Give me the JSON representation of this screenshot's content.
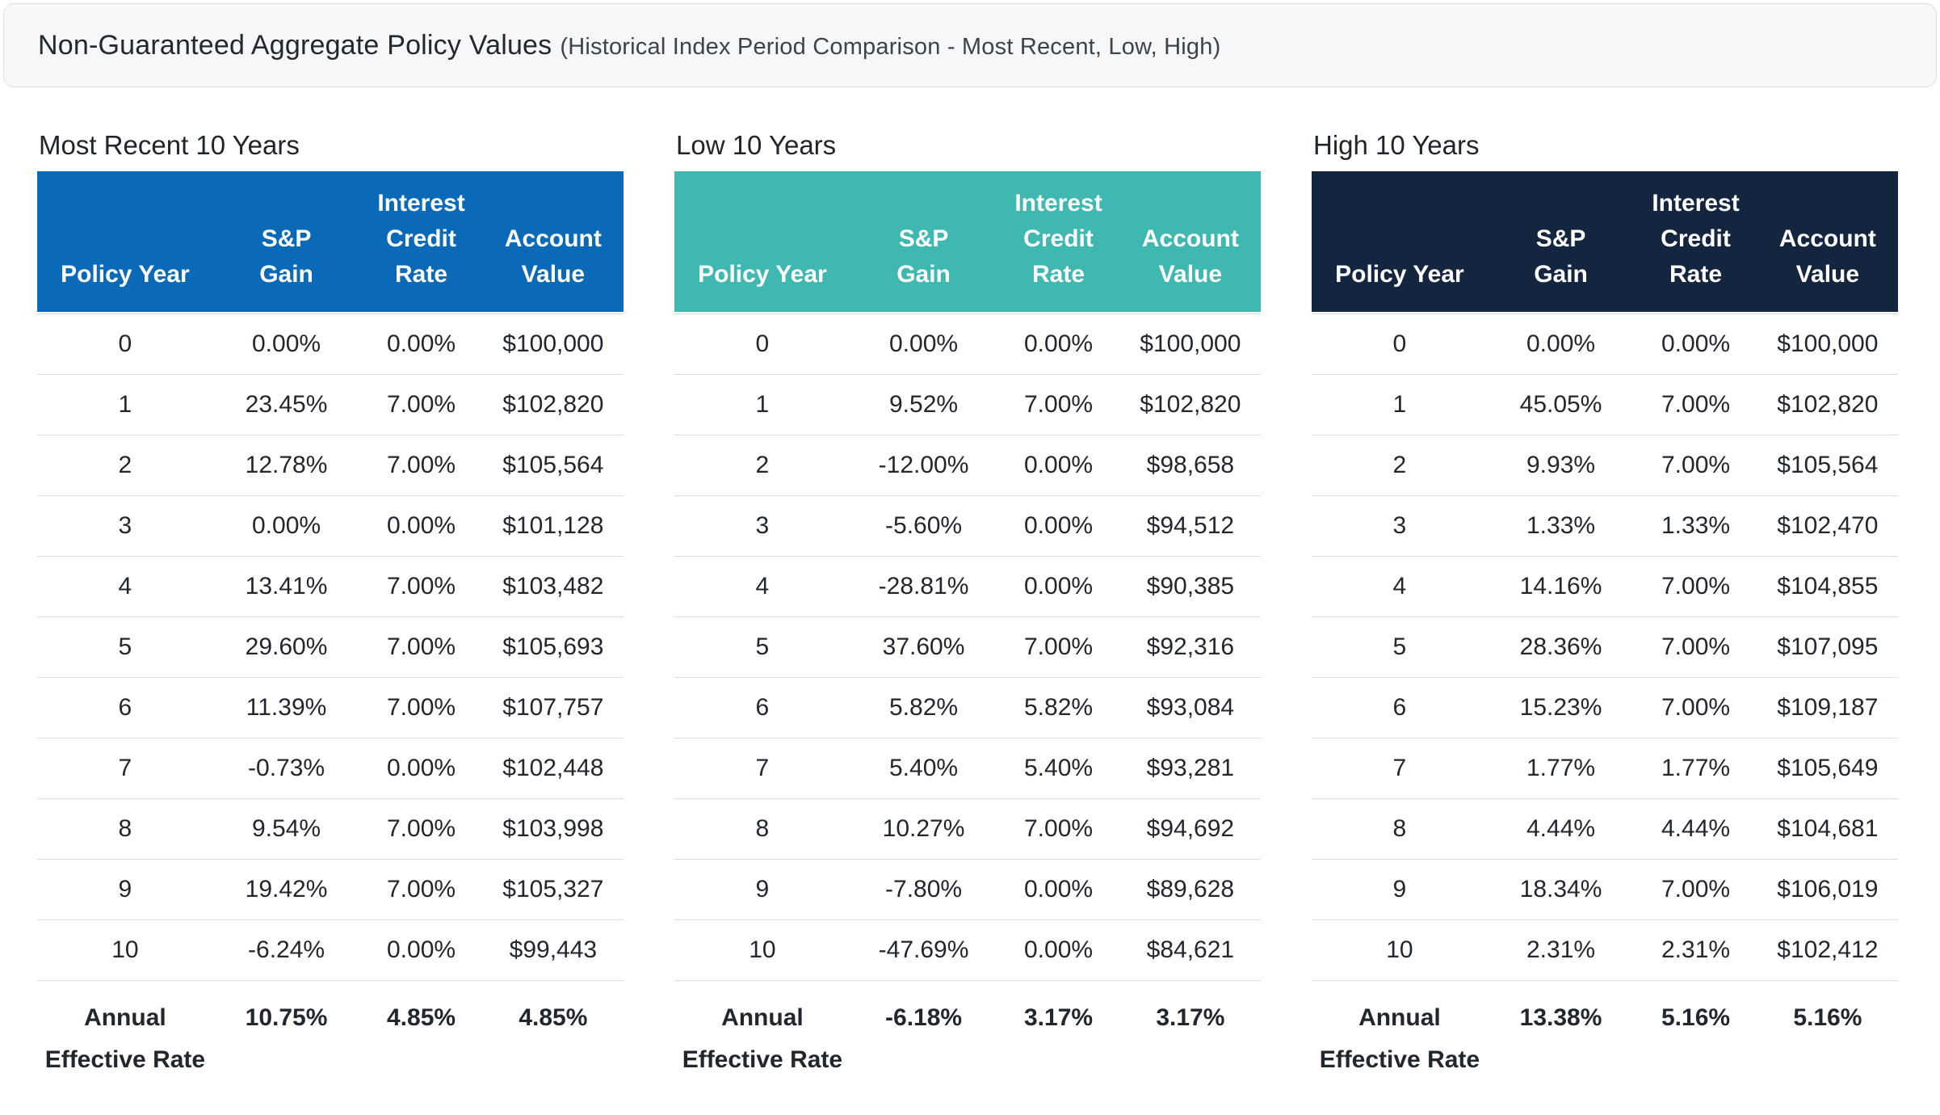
{
  "header": {
    "title": "Non-Guaranteed Aggregate Policy Values",
    "subtitle": "(Historical Index Period Comparison - Most Recent, Low, High)"
  },
  "columns": [
    "Policy Year",
    "S&P\nGain",
    "Interest\nCredit\nRate",
    "Account\nValue"
  ],
  "tables": [
    {
      "title": "Most Recent 10 Years",
      "accent": "#0a6ab8",
      "rows": [
        {
          "year": "0",
          "gain": "0.00%",
          "rate": "0.00%",
          "value": "$100,000"
        },
        {
          "year": "1",
          "gain": "23.45%",
          "rate": "7.00%",
          "value": "$102,820"
        },
        {
          "year": "2",
          "gain": "12.78%",
          "rate": "7.00%",
          "value": "$105,564"
        },
        {
          "year": "3",
          "gain": "0.00%",
          "rate": "0.00%",
          "value": "$101,128"
        },
        {
          "year": "4",
          "gain": "13.41%",
          "rate": "7.00%",
          "value": "$103,482"
        },
        {
          "year": "5",
          "gain": "29.60%",
          "rate": "7.00%",
          "value": "$105,693"
        },
        {
          "year": "6",
          "gain": "11.39%",
          "rate": "7.00%",
          "value": "$107,757"
        },
        {
          "year": "7",
          "gain": "-0.73%",
          "rate": "0.00%",
          "value": "$102,448"
        },
        {
          "year": "8",
          "gain": "9.54%",
          "rate": "7.00%",
          "value": "$103,998"
        },
        {
          "year": "9",
          "gain": "19.42%",
          "rate": "7.00%",
          "value": "$105,327"
        },
        {
          "year": "10",
          "gain": "-6.24%",
          "rate": "0.00%",
          "value": "$99,443"
        }
      ],
      "summary": {
        "label": "Annual Effective Rate",
        "gain": "10.75%",
        "rate": "4.85%",
        "value": "4.85%"
      }
    },
    {
      "title": "Low 10 Years",
      "accent": "#3fb8b1",
      "rows": [
        {
          "year": "0",
          "gain": "0.00%",
          "rate": "0.00%",
          "value": "$100,000"
        },
        {
          "year": "1",
          "gain": "9.52%",
          "rate": "7.00%",
          "value": "$102,820"
        },
        {
          "year": "2",
          "gain": "-12.00%",
          "rate": "0.00%",
          "value": "$98,658"
        },
        {
          "year": "3",
          "gain": "-5.60%",
          "rate": "0.00%",
          "value": "$94,512"
        },
        {
          "year": "4",
          "gain": "-28.81%",
          "rate": "0.00%",
          "value": "$90,385"
        },
        {
          "year": "5",
          "gain": "37.60%",
          "rate": "7.00%",
          "value": "$92,316"
        },
        {
          "year": "6",
          "gain": "5.82%",
          "rate": "5.82%",
          "value": "$93,084"
        },
        {
          "year": "7",
          "gain": "5.40%",
          "rate": "5.40%",
          "value": "$93,281"
        },
        {
          "year": "8",
          "gain": "10.27%",
          "rate": "7.00%",
          "value": "$94,692"
        },
        {
          "year": "9",
          "gain": "-7.80%",
          "rate": "0.00%",
          "value": "$89,628"
        },
        {
          "year": "10",
          "gain": "-47.69%",
          "rate": "0.00%",
          "value": "$84,621"
        }
      ],
      "summary": {
        "label": "Annual Effective Rate",
        "gain": "-6.18%",
        "rate": "3.17%",
        "value": "3.17%"
      }
    },
    {
      "title": "High 10 Years",
      "accent": "#14263f",
      "rows": [
        {
          "year": "0",
          "gain": "0.00%",
          "rate": "0.00%",
          "value": "$100,000"
        },
        {
          "year": "1",
          "gain": "45.05%",
          "rate": "7.00%",
          "value": "$102,820"
        },
        {
          "year": "2",
          "gain": "9.93%",
          "rate": "7.00%",
          "value": "$105,564"
        },
        {
          "year": "3",
          "gain": "1.33%",
          "rate": "1.33%",
          "value": "$102,470"
        },
        {
          "year": "4",
          "gain": "14.16%",
          "rate": "7.00%",
          "value": "$104,855"
        },
        {
          "year": "5",
          "gain": "28.36%",
          "rate": "7.00%",
          "value": "$107,095"
        },
        {
          "year": "6",
          "gain": "15.23%",
          "rate": "7.00%",
          "value": "$109,187"
        },
        {
          "year": "7",
          "gain": "1.77%",
          "rate": "1.77%",
          "value": "$105,649"
        },
        {
          "year": "8",
          "gain": "4.44%",
          "rate": "4.44%",
          "value": "$104,681"
        },
        {
          "year": "9",
          "gain": "18.34%",
          "rate": "7.00%",
          "value": "$106,019"
        },
        {
          "year": "10",
          "gain": "2.31%",
          "rate": "2.31%",
          "value": "$102,412"
        }
      ],
      "summary": {
        "label": "Annual Effective Rate",
        "gain": "13.38%",
        "rate": "5.16%",
        "value": "5.16%"
      }
    }
  ]
}
